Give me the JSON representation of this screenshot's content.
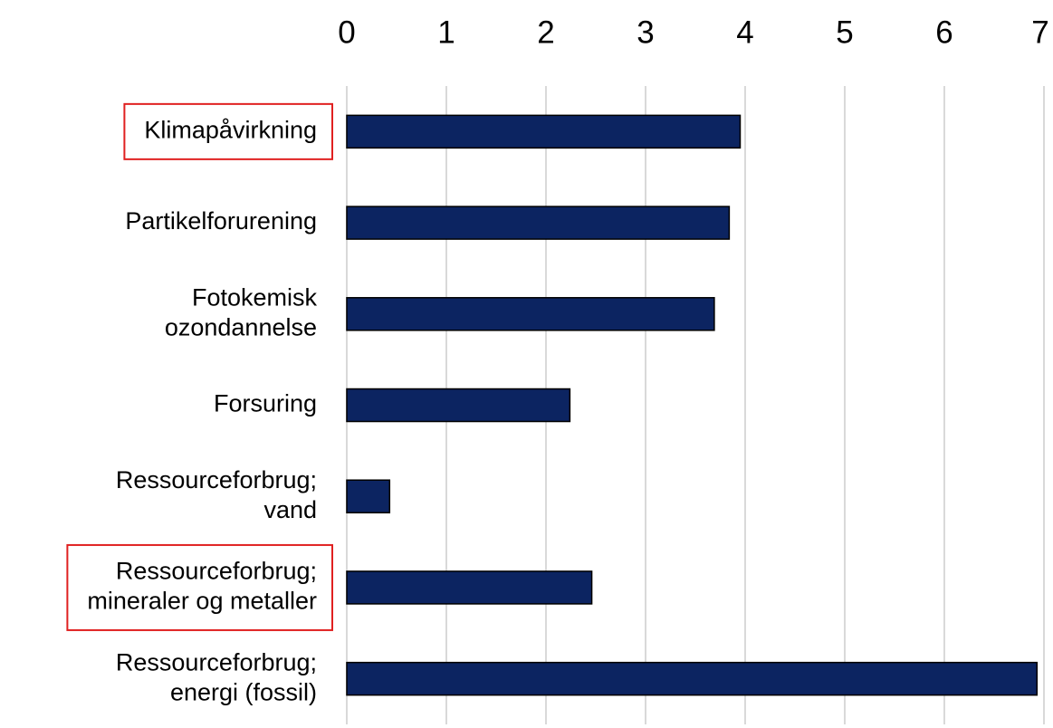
{
  "chart_data": {
    "type": "barh",
    "categories": [
      [
        "Klimapåvirkning"
      ],
      [
        "Partikelforurening"
      ],
      [
        "Fotokemisk",
        "ozondannelse"
      ],
      [
        "Forsuring"
      ],
      [
        "Ressourceforbrug;",
        "vand"
      ],
      [
        "Ressourceforbrug;",
        "mineraler og metaller"
      ],
      [
        "Ressourceforbrug;",
        "energi (fossil)"
      ]
    ],
    "values": [
      3.95,
      3.84,
      3.69,
      2.24,
      0.43,
      2.46,
      6.93
    ],
    "color": "#0c2461",
    "xlim": [
      0,
      7
    ],
    "xticks": [
      0,
      1,
      2,
      3,
      4,
      5,
      6,
      7
    ],
    "grid": true,
    "highlight": [
      0,
      5
    ],
    "highlight_color": "#e02020"
  }
}
